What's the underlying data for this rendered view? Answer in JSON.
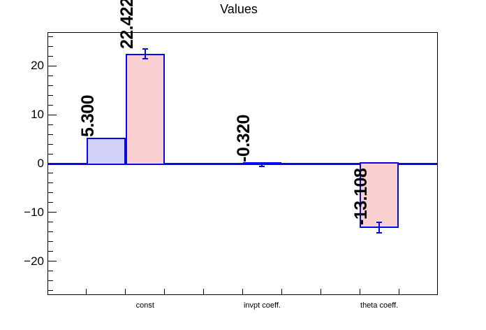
{
  "chart_data": {
    "type": "bar",
    "title": "Values",
    "categories": [
      {
        "label": "const",
        "bin": 3
      },
      {
        "label": "invpt coeff.",
        "bin": 6
      },
      {
        "label": "theta coeff.",
        "bin": 9
      }
    ],
    "series": [
      {
        "name": "blue",
        "fill": "#d2d2f8",
        "stroke": "#0707e8",
        "points": [
          {
            "bin": 2,
            "value": 5.3,
            "error": 0,
            "label": "5.300"
          },
          {
            "bin": 6,
            "value": -0.32,
            "error": 0.3,
            "label": "-0.320"
          }
        ]
      },
      {
        "name": "pink",
        "fill": "#fbd0d0",
        "stroke": "#0707e8",
        "points": [
          {
            "bin": 3,
            "value": 22.422,
            "error": 1.0,
            "label": "22.422"
          },
          {
            "bin": 9,
            "value": -13.108,
            "error": 1.1,
            "label": "-13.108"
          }
        ]
      }
    ],
    "x_axis": {
      "divisions": 10
    },
    "y_axis": {
      "min": -26.9,
      "max": 26.9,
      "minor_step": 2,
      "major_ticks": [
        {
          "value": 20,
          "label": "20"
        },
        {
          "value": 10,
          "label": "10"
        },
        {
          "value": 0,
          "label": "0"
        },
        {
          "value": -10,
          "label": "−10"
        },
        {
          "value": -20,
          "label": "−20"
        }
      ]
    },
    "zero_line_color": "#0707e8",
    "frame_color": "#000000",
    "background": "#ffffff",
    "grid": false,
    "legend": false
  }
}
